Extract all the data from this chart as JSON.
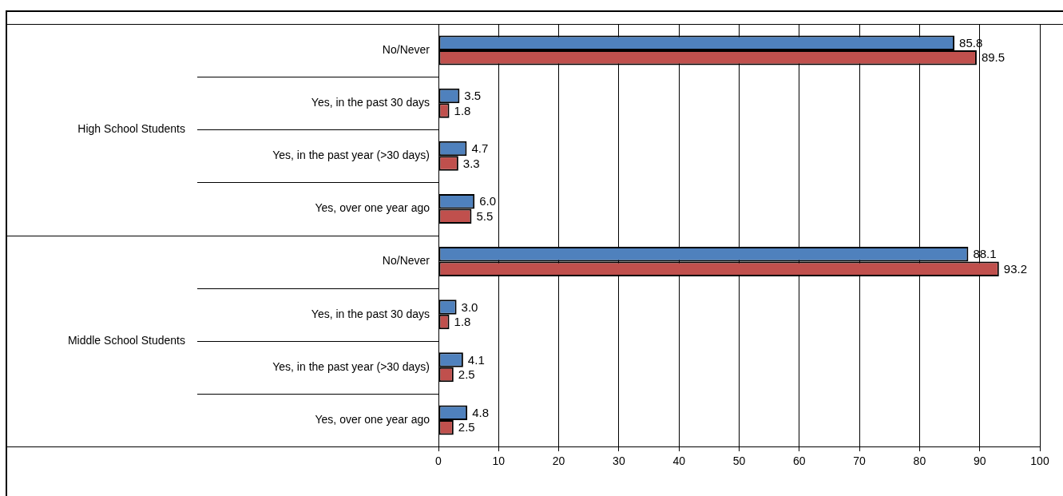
{
  "chart_data": {
    "type": "bar",
    "orientation": "horizontal",
    "categories": [
      "No/Never",
      "Yes, in the past 30 days",
      "Yes, in the past year (>30 days)",
      "Yes, over one year ago",
      "No/Never",
      "Yes, in the past 30 days",
      "Yes, in the past year (>30 days)",
      "Yes, over one year ago"
    ],
    "annotations": [
      "High School Students",
      "Middle School Students"
    ],
    "series": [
      {
        "color": "#4f81bd",
        "values": [
          85.8,
          3.5,
          4.7,
          6.0,
          88.1,
          3.0,
          4.1,
          4.8
        ],
        "value_labels": [
          "85.8",
          "3.5",
          "4.7",
          "6.0",
          "88.1",
          "3.0",
          "4.1",
          "4.8"
        ]
      },
      {
        "color": "#c0504d",
        "values": [
          89.5,
          1.8,
          3.3,
          5.5,
          93.2,
          1.8,
          2.5,
          2.5
        ],
        "value_labels": [
          "89.5",
          "1.8",
          "3.3",
          "5.5",
          "93.2",
          "1.8",
          "2.5",
          "2.5"
        ]
      }
    ],
    "xlim": [
      0,
      100
    ],
    "xticks": [
      0,
      10,
      20,
      30,
      40,
      50,
      60,
      70,
      80,
      90,
      100
    ],
    "grid": "x",
    "legend": false
  }
}
